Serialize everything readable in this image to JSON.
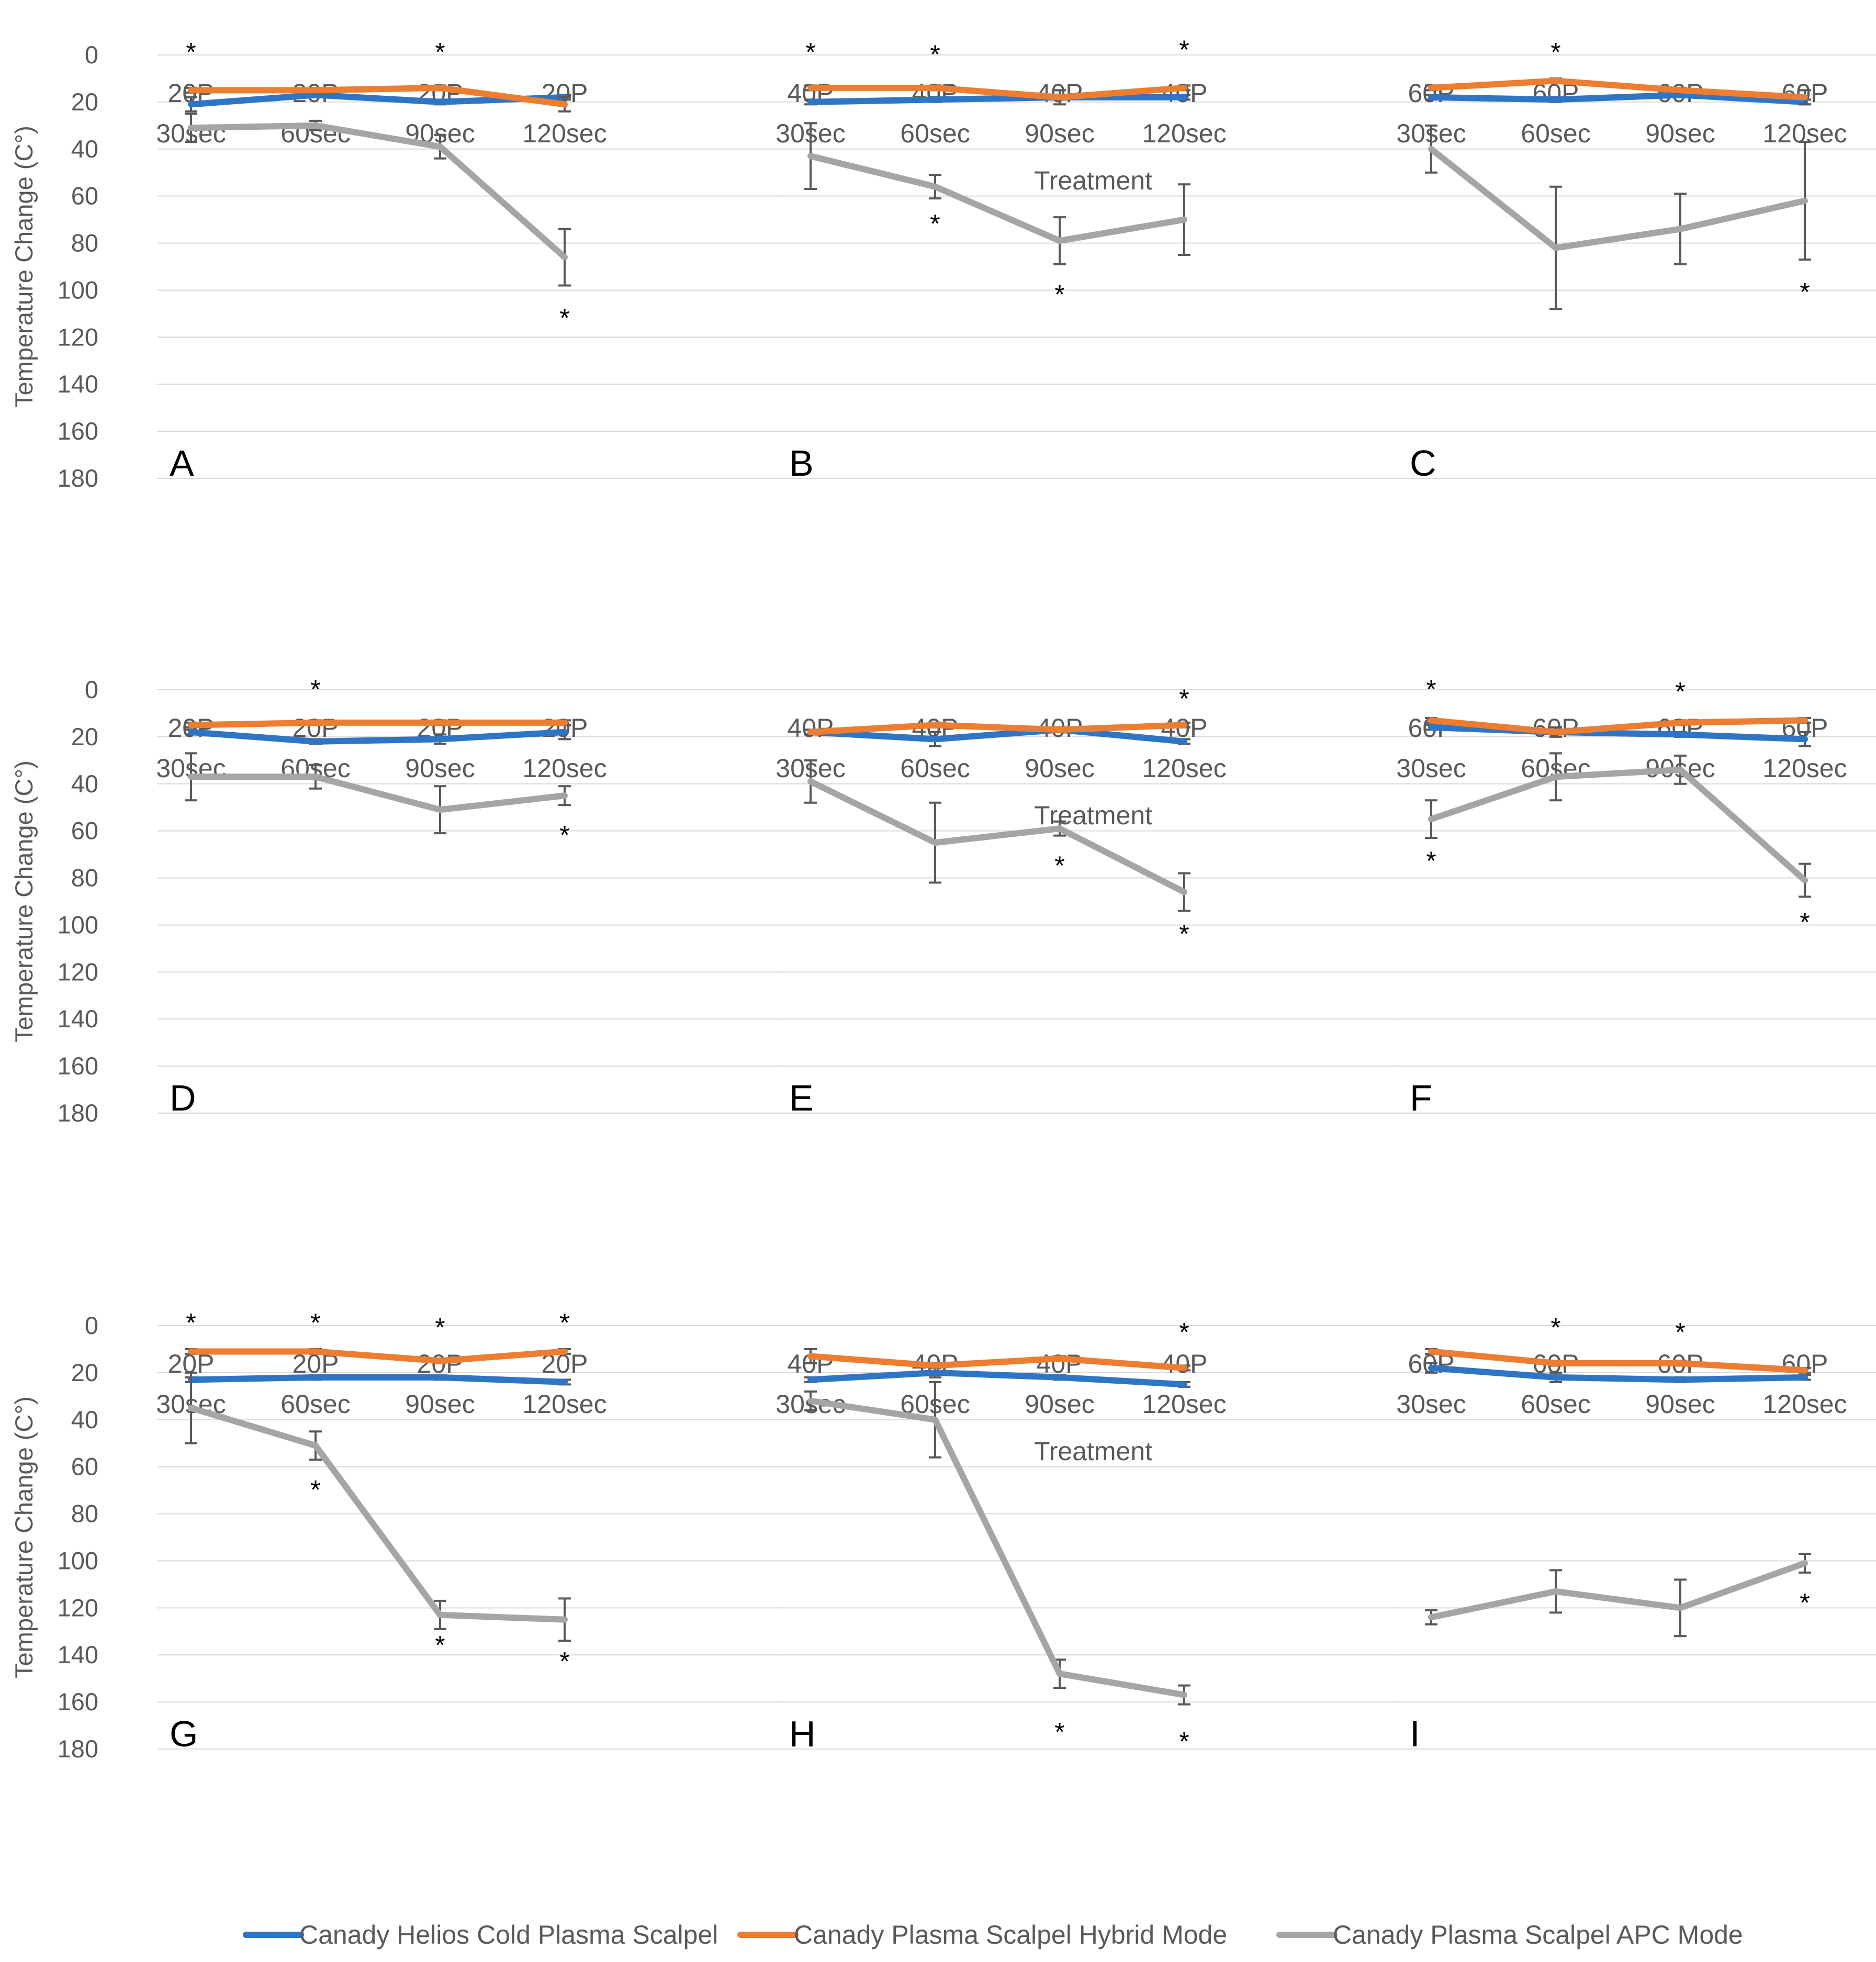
{
  "figure": {
    "ylabel": "Temperature Change (C°)",
    "legend": [
      {
        "name": "Canady Helios Cold Plasma Scalpel",
        "color": "#2e75c6"
      },
      {
        "name": "Canady Plasma Scalpel Hybrid Mode",
        "color": "#ed7d31"
      },
      {
        "name": "Canady Plasma Scalpel APC Mode",
        "color": "#a5a5a5"
      }
    ],
    "row_xlabels": [
      "Treatment",
      "Treatment",
      "Treatment"
    ]
  },
  "chart_data": [
    {
      "type": "line",
      "title": "A",
      "ylim": [
        0,
        180
      ],
      "yticks": [
        "0",
        "20",
        "40",
        "60",
        "80",
        "100",
        "120",
        "140",
        "160",
        "180"
      ],
      "categories": [
        "20P 30sec",
        "20P 60sec",
        "20P 90sec",
        "20P 120sec"
      ],
      "series": [
        {
          "name": "Canady Helios Cold Plasma Scalpel",
          "values": [
            21,
            17,
            20,
            18
          ],
          "errors": [
            3,
            1,
            1,
            1
          ]
        },
        {
          "name": "Canady Plasma Scalpel Hybrid Mode",
          "values": [
            15,
            15,
            14,
            21
          ],
          "errors": [
            1,
            1,
            1,
            3
          ]
        },
        {
          "name": "Canady Plasma Scalpel APC Mode",
          "values": [
            31,
            30,
            39,
            86
          ],
          "errors": [
            6,
            2,
            5,
            12
          ]
        }
      ],
      "stars": [
        {
          "cat": 0,
          "value": -3
        },
        {
          "cat": 2,
          "value": -3
        },
        {
          "cat": 3,
          "value": 110
        }
      ]
    },
    {
      "type": "line",
      "title": "B",
      "ylim": [
        0,
        180
      ],
      "yticks": [
        "0",
        "20",
        "40",
        "60",
        "80",
        "100",
        "120",
        "140",
        "160",
        "180"
      ],
      "categories": [
        "40P 30sec",
        "40P 60sec",
        "40P 90sec",
        "40P 120sec"
      ],
      "series": [
        {
          "name": "Canady Helios Cold Plasma Scalpel",
          "values": [
            20,
            19,
            18,
            18
          ],
          "errors": [
            1,
            1,
            1,
            1
          ]
        },
        {
          "name": "Canady Plasma Scalpel Hybrid Mode",
          "values": [
            14,
            14,
            18,
            14
          ],
          "errors": [
            1,
            1,
            3,
            1
          ]
        },
        {
          "name": "Canady Plasma Scalpel APC Mode",
          "values": [
            43,
            56,
            79,
            70
          ],
          "errors": [
            14,
            5,
            10,
            15
          ]
        }
      ],
      "stars": [
        {
          "cat": 0,
          "value": -3
        },
        {
          "cat": 1,
          "value": -2
        },
        {
          "cat": 1,
          "value": 70
        },
        {
          "cat": 2,
          "value": 100
        },
        {
          "cat": 3,
          "value": -4
        }
      ]
    },
    {
      "type": "line",
      "title": "C",
      "ylim": [
        0,
        180
      ],
      "yticks": [
        "0",
        "20",
        "40",
        "60",
        "80",
        "100",
        "120",
        "140",
        "160",
        "180"
      ],
      "categories": [
        "60P 30sec",
        "60P 60sec",
        "60P 90sec",
        "60P 120sec"
      ],
      "series": [
        {
          "name": "Canady Helios Cold Plasma Scalpel",
          "values": [
            18,
            19,
            17,
            20
          ],
          "errors": [
            1,
            1,
            1,
            1
          ]
        },
        {
          "name": "Canady Plasma Scalpel Hybrid Mode",
          "values": [
            14,
            11,
            15,
            18
          ],
          "errors": [
            1,
            1,
            1,
            3
          ]
        },
        {
          "name": "Canady Plasma Scalpel APC Mode",
          "values": [
            40,
            82,
            74,
            62
          ],
          "errors": [
            10,
            26,
            15,
            25
          ]
        }
      ],
      "stars": [
        {
          "cat": 1,
          "value": -3
        },
        {
          "cat": 3,
          "value": 99
        }
      ]
    },
    {
      "type": "line",
      "title": "D",
      "ylim": [
        0,
        180
      ],
      "yticks": [
        "0",
        "20",
        "40",
        "60",
        "80",
        "100",
        "120",
        "140",
        "160",
        "180"
      ],
      "categories": [
        "20P 30sec",
        "20P 60sec",
        "20P 90sec",
        "20P 120sec"
      ],
      "series": [
        {
          "name": "Canady Helios Cold Plasma Scalpel",
          "values": [
            18,
            22,
            21,
            18
          ],
          "errors": [
            1,
            1,
            2,
            3
          ]
        },
        {
          "name": "Canady Plasma Scalpel Hybrid Mode",
          "values": [
            15,
            14,
            14,
            14
          ],
          "errors": [
            1,
            1,
            1,
            1
          ]
        },
        {
          "name": "Canady Plasma Scalpel APC Mode",
          "values": [
            37,
            37,
            51,
            45
          ],
          "errors": [
            10,
            5,
            10,
            4
          ]
        }
      ],
      "stars": [
        {
          "cat": 1,
          "value": -2
        },
        {
          "cat": 3,
          "value": 60
        }
      ]
    },
    {
      "type": "line",
      "title": "E",
      "ylim": [
        0,
        180
      ],
      "yticks": [
        "0",
        "20",
        "40",
        "60",
        "80",
        "100",
        "120",
        "140",
        "160",
        "180"
      ],
      "categories": [
        "40P 30sec",
        "40P 60sec",
        "40P 90sec",
        "40P 120sec"
      ],
      "series": [
        {
          "name": "Canady Helios Cold Plasma Scalpel",
          "values": [
            18,
            21,
            17,
            22
          ],
          "errors": [
            1,
            3,
            1,
            1
          ]
        },
        {
          "name": "Canady Plasma Scalpel Hybrid Mode",
          "values": [
            18,
            15,
            17,
            15
          ],
          "errors": [
            1,
            1,
            1,
            1
          ]
        },
        {
          "name": "Canady Plasma Scalpel APC Mode",
          "values": [
            39,
            65,
            59,
            86
          ],
          "errors": [
            9,
            17,
            3,
            8
          ]
        }
      ],
      "stars": [
        {
          "cat": 2,
          "value": 73
        },
        {
          "cat": 3,
          "value": 102
        },
        {
          "cat": 3,
          "value": 2
        }
      ]
    },
    {
      "type": "line",
      "title": "F",
      "ylim": [
        0,
        180
      ],
      "yticks": [
        "0",
        "20",
        "40",
        "60",
        "80",
        "100",
        "120",
        "140",
        "160",
        "180"
      ],
      "categories": [
        "60P 30sec",
        "60P 60sec",
        "60P 90sec",
        "60P 120sec"
      ],
      "series": [
        {
          "name": "Canady Helios Cold Plasma Scalpel",
          "values": [
            16,
            18,
            19,
            21
          ],
          "errors": [
            1,
            1,
            1,
            3
          ]
        },
        {
          "name": "Canady Plasma Scalpel Hybrid Mode",
          "values": [
            13,
            18,
            14,
            13
          ],
          "errors": [
            1,
            2,
            1,
            1
          ]
        },
        {
          "name": "Canady Plasma Scalpel APC Mode",
          "values": [
            55,
            37,
            34,
            81
          ],
          "errors": [
            8,
            10,
            6,
            7
          ]
        }
      ],
      "stars": [
        {
          "cat": 0,
          "value": 71
        },
        {
          "cat": 0,
          "value": -2
        },
        {
          "cat": 2,
          "value": -1
        },
        {
          "cat": 3,
          "value": 97
        }
      ]
    },
    {
      "type": "line",
      "title": "G",
      "ylim": [
        0,
        180
      ],
      "yticks": [
        "0",
        "20",
        "40",
        "60",
        "80",
        "100",
        "120",
        "140",
        "160",
        "180"
      ],
      "categories": [
        "20P 30sec",
        "20P 60sec",
        "20P 90sec",
        "20P 120sec"
      ],
      "series": [
        {
          "name": "Canady Helios Cold Plasma Scalpel",
          "values": [
            23,
            22,
            22,
            24
          ],
          "errors": [
            1,
            1,
            1,
            1
          ]
        },
        {
          "name": "Canady Plasma Scalpel Hybrid Mode",
          "values": [
            11,
            11,
            15,
            11
          ],
          "errors": [
            1,
            1,
            1,
            1
          ]
        },
        {
          "name": "Canady Plasma Scalpel APC Mode",
          "values": [
            35,
            51,
            123,
            125
          ],
          "errors": [
            15,
            6,
            6,
            9
          ]
        }
      ],
      "stars": [
        {
          "cat": 0,
          "value": -3
        },
        {
          "cat": 1,
          "value": 68
        },
        {
          "cat": 1,
          "value": -3
        },
        {
          "cat": 2,
          "value": 134
        },
        {
          "cat": 2,
          "value": -1
        },
        {
          "cat": 3,
          "value": 141
        },
        {
          "cat": 3,
          "value": -3
        }
      ]
    },
    {
      "type": "line",
      "title": "H",
      "ylim": [
        0,
        180
      ],
      "yticks": [
        "0",
        "20",
        "40",
        "60",
        "80",
        "100",
        "120",
        "140",
        "160",
        "180"
      ],
      "categories": [
        "40P 30sec",
        "40P 60sec",
        "40P 90sec",
        "40P 120sec"
      ],
      "series": [
        {
          "name": "Canady Helios Cold Plasma Scalpel",
          "values": [
            23,
            20,
            22,
            25
          ],
          "errors": [
            1,
            2,
            1,
            1
          ]
        },
        {
          "name": "Canady Plasma Scalpel Hybrid Mode",
          "values": [
            13,
            17,
            14,
            18
          ],
          "errors": [
            3,
            1,
            1,
            1
          ]
        },
        {
          "name": "Canady Plasma Scalpel APC Mode",
          "values": [
            32,
            40,
            148,
            157
          ],
          "errors": [
            4,
            16,
            6,
            4
          ]
        }
      ],
      "stars": [
        {
          "cat": 2,
          "value": 171
        },
        {
          "cat": 3,
          "value": 175
        },
        {
          "cat": 3,
          "value": 1
        }
      ]
    },
    {
      "type": "line",
      "title": "I",
      "ylim": [
        0,
        180
      ],
      "yticks": [
        "0",
        "20",
        "40",
        "60",
        "80",
        "100",
        "120",
        "140",
        "160",
        "180"
      ],
      "categories": [
        "60P 30sec",
        "60P 60sec",
        "60P 90sec",
        "60P 120sec"
      ],
      "series": [
        {
          "name": "Canady Helios Cold Plasma Scalpel",
          "values": [
            18,
            22,
            23,
            22
          ],
          "errors": [
            2,
            2,
            1,
            1
          ]
        },
        {
          "name": "Canady Plasma Scalpel Hybrid Mode",
          "values": [
            11,
            16,
            16,
            19
          ],
          "errors": [
            1,
            1,
            1,
            1
          ]
        },
        {
          "name": "Canady Plasma Scalpel APC Mode",
          "values": [
            124,
            113,
            120,
            101
          ],
          "errors": [
            3,
            9,
            12,
            4
          ]
        }
      ],
      "stars": [
        {
          "cat": 1,
          "value": -1
        },
        {
          "cat": 2,
          "value": 1
        },
        {
          "cat": 3,
          "value": 116
        }
      ]
    }
  ]
}
